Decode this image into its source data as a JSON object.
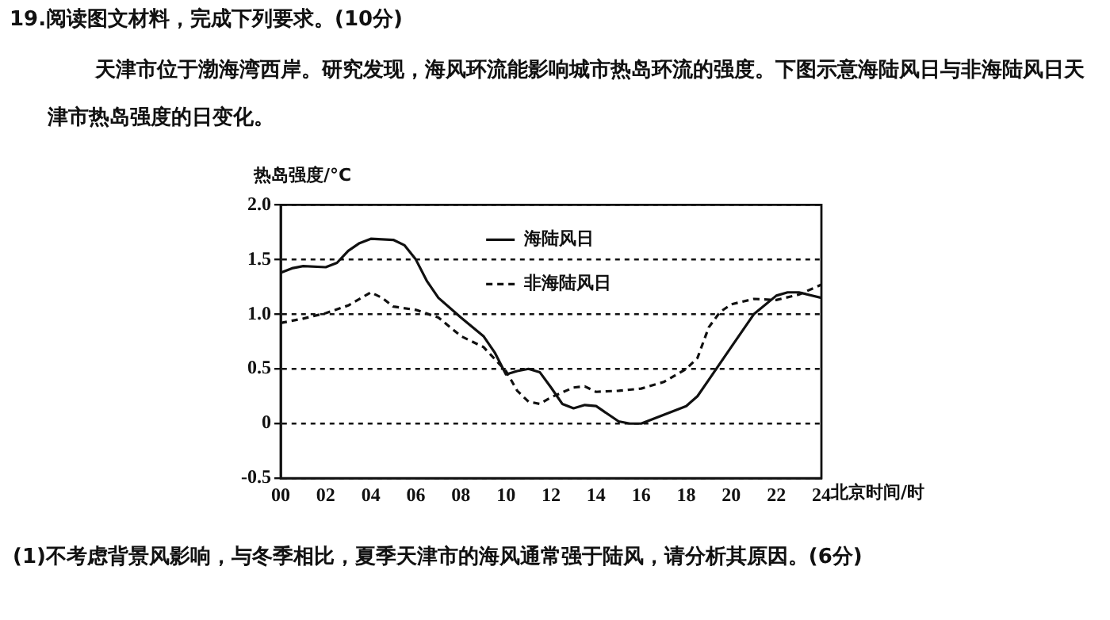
{
  "chart_data": {
    "type": "line",
    "title": "19.阅读图文材料，完成下列要求。(10分)",
    "annotations": [
      "天津市位于渤海湾西岸。研究发现，海风环流能影响城市热岛环流的强度。下图示意海陆风日与非海陆风日天津市热岛强度的日变化。",
      "(1)不考虑背景风影响，与冬季相比，夏季天津市的海风通常强于陆风，请分析其原因。(6分)"
    ],
    "ylabel": "热岛强度/°C",
    "xlabel": "北京时间/时",
    "series": [
      {
        "name": "海陆风日",
        "color": "#111111",
        "line_style": "solid",
        "x": [
          0,
          0.5,
          1,
          2,
          2.5,
          3,
          3.5,
          4,
          5,
          5.5,
          6,
          6.5,
          7,
          8,
          9,
          9.5,
          10,
          10.5,
          11,
          11.5,
          12,
          12.5,
          13,
          13.5,
          14,
          15,
          15.5,
          16,
          17,
          18,
          18.5,
          19,
          20,
          21,
          22,
          22.5,
          23,
          24
        ],
        "values": [
          1.38,
          1.42,
          1.44,
          1.43,
          1.47,
          1.58,
          1.65,
          1.69,
          1.68,
          1.63,
          1.5,
          1.3,
          1.15,
          0.97,
          0.8,
          0.65,
          0.45,
          0.48,
          0.5,
          0.47,
          0.33,
          0.18,
          0.14,
          0.17,
          0.16,
          0.02,
          0,
          0,
          0.08,
          0.16,
          0.25,
          0.4,
          0.7,
          1,
          1.17,
          1.2,
          1.2,
          1.15
        ]
      },
      {
        "name": "非海陆风日",
        "color": "#111111",
        "line_style": "dashed",
        "x": [
          0,
          1,
          2,
          3,
          4,
          4.5,
          5,
          6,
          7,
          8,
          9,
          10,
          10.5,
          11,
          11.5,
          12,
          13,
          13.5,
          14,
          15,
          16,
          17,
          18,
          18.5,
          19,
          19.5,
          20,
          21,
          22,
          23,
          24
        ],
        "values": [
          0.92,
          0.96,
          1.01,
          1.08,
          1.2,
          1.15,
          1.07,
          1.04,
          0.97,
          0.8,
          0.7,
          0.48,
          0.3,
          0.2,
          0.18,
          0.24,
          0.33,
          0.34,
          0.29,
          0.3,
          0.32,
          0.38,
          0.5,
          0.6,
          0.88,
          1.02,
          1.09,
          1.14,
          1.13,
          1.18,
          1.27
        ]
      }
    ],
    "xlim": [
      0,
      24
    ],
    "xticks": [
      {
        "value": 0,
        "label": "00"
      },
      {
        "value": 2,
        "label": "02"
      },
      {
        "value": 4,
        "label": "04"
      },
      {
        "value": 6,
        "label": "06"
      },
      {
        "value": 8,
        "label": "08"
      },
      10,
      12,
      14,
      16,
      18,
      20,
      22,
      24
    ],
    "ylim": [
      -0.5,
      2
    ],
    "yticks": [
      -0.5,
      0,
      0.5,
      {
        "value": 1,
        "label": "1.0"
      },
      1.5,
      {
        "value": 2,
        "label": "2.0"
      }
    ],
    "grid": "y",
    "legend": "top",
    "marker": "none"
  }
}
